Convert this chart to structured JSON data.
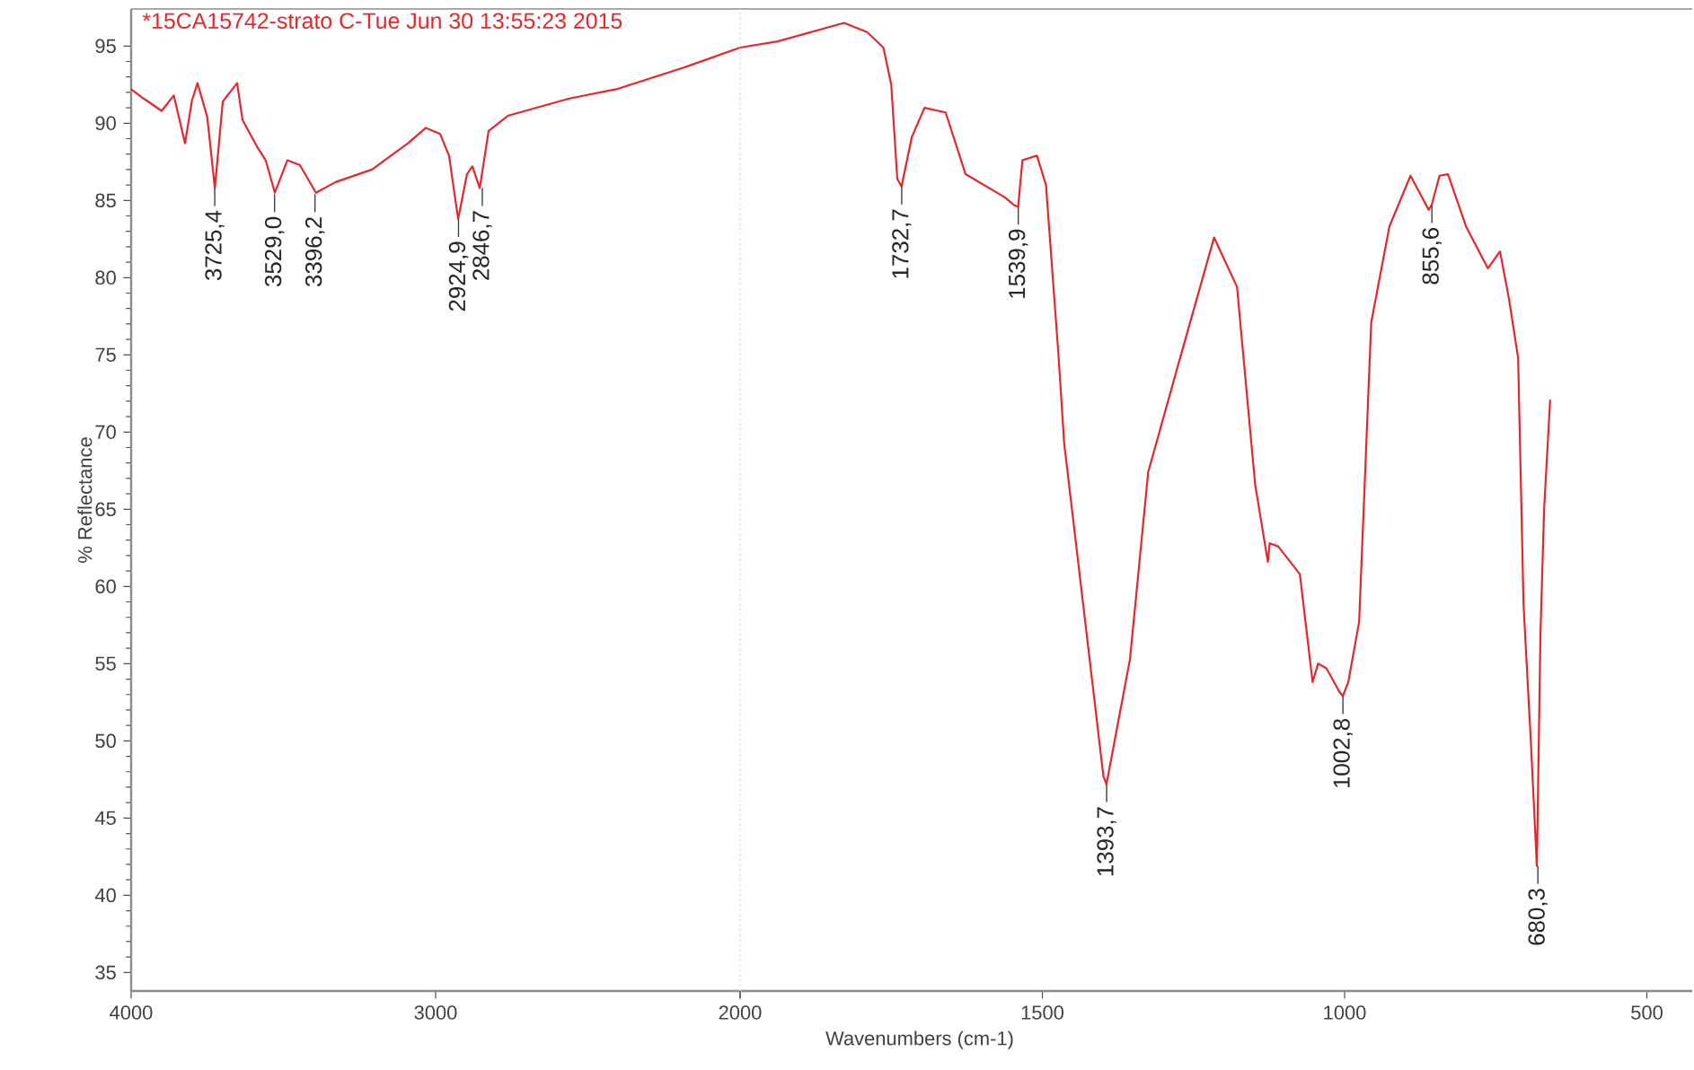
{
  "chart_data": [
    {
      "type": "line",
      "title": "*15CA15742-strato C-Tue Jun 30 13:55:23 2015",
      "ylabel": "% Reflectance",
      "xlim": [
        4000,
        2000
      ],
      "ylim": [
        33.8,
        97.4
      ],
      "xticks": [
        4000,
        3000,
        2000
      ],
      "yticks": [
        35,
        40,
        45,
        50,
        55,
        60,
        65,
        70,
        75,
        80,
        85,
        90,
        95
      ],
      "grid": false,
      "marker": "none",
      "line_style": "solid",
      "series": [
        {
          "color": "#e8262a",
          "x": [
            4000,
            3959,
            3900,
            3860,
            3823,
            3800,
            3782,
            3750,
            3725,
            3699,
            3652,
            3634,
            3587,
            3558,
            3528,
            3487,
            3446,
            3393,
            3327,
            3209,
            3091,
            3032,
            2985,
            2956,
            2926,
            2897,
            2879,
            2855,
            2826,
            2761,
            2561,
            2407,
            2171,
            2000
          ],
          "values": [
            92.2,
            91.6,
            90.8,
            91.8,
            88.7,
            91.5,
            92.6,
            90.4,
            85.8,
            91.4,
            92.6,
            90.2,
            88.5,
            87.6,
            85.5,
            87.6,
            87.3,
            85.5,
            86.2,
            87.0,
            88.7,
            89.7,
            89.3,
            87.9,
            83.8,
            86.7,
            87.2,
            85.8,
            89.5,
            90.5,
            91.6,
            92.2,
            93.7,
            94.9
          ]
        }
      ],
      "annotations": [
        {
          "text": "3725,4",
          "x": 3725.4,
          "y": 85.8
        },
        {
          "text": "3529,0",
          "x": 3529.0,
          "y": 85.4
        },
        {
          "text": "3396,2",
          "x": 3396.2,
          "y": 85.4
        },
        {
          "text": "2924,9",
          "x": 2924.9,
          "y": 83.8
        },
        {
          "text": "2846,7",
          "x": 2846.7,
          "y": 85.8
        }
      ]
    },
    {
      "type": "line",
      "xlabel": "Wavenumbers (cm-1)",
      "xlim": [
        2000,
        425
      ],
      "ylim": [
        33.8,
        97.4
      ],
      "xticks": [
        {
          "value": 2000,
          "label": null
        },
        1500,
        1000,
        500
      ],
      "tick_labels": "x",
      "grid": false,
      "marker": "none",
      "line_style": "solid",
      "series": [
        {
          "color": "#e8262a",
          "x": [
            2000,
            1938,
            1828,
            1790,
            1763,
            1750,
            1740,
            1733,
            1716,
            1695,
            1660,
            1627,
            1562,
            1547,
            1540,
            1533,
            1509,
            1494,
            1473,
            1464,
            1399,
            1394,
            1355,
            1325,
            1275,
            1216,
            1178,
            1148,
            1127,
            1124,
            1110,
            1074,
            1053,
            1044,
            1030,
            1009,
            1003,
            994,
            976,
            956,
            926,
            891,
            861,
            856,
            843,
            829,
            799,
            763,
            743,
            728,
            713,
            704,
            692,
            682,
            676,
            670,
            660
          ],
          "values": [
            94.9,
            95.3,
            96.5,
            95.9,
            94.9,
            92.5,
            86.4,
            85.9,
            89.1,
            91.0,
            90.7,
            86.7,
            85.2,
            84.7,
            84.6,
            87.6,
            87.9,
            86.0,
            74.8,
            69.3,
            47.7,
            47.2,
            55.3,
            67.4,
            74.4,
            82.6,
            79.4,
            66.6,
            61.6,
            62.8,
            62.6,
            60.8,
            53.8,
            55.0,
            54.7,
            53.2,
            52.9,
            53.8,
            57.7,
            77.1,
            83.3,
            86.6,
            84.4,
            84.7,
            86.6,
            86.7,
            83.3,
            80.6,
            81.7,
            78.6,
            74.8,
            58.8,
            50.0,
            41.9,
            57.0,
            65.0,
            72.1
          ]
        }
      ],
      "annotations": [
        {
          "text": "1732,7",
          "x": 1732.7,
          "y": 85.9
        },
        {
          "text": "1539,9",
          "x": 1539.9,
          "y": 84.6
        },
        {
          "text": "1393,7",
          "x": 1393.7,
          "y": 47.2
        },
        {
          "text": "1002,8",
          "x": 1002.8,
          "y": 52.9
        },
        {
          "text": "855,6",
          "x": 855.6,
          "y": 84.7
        },
        {
          "text": "680,3",
          "x": 680.3,
          "y": 41.9
        }
      ]
    }
  ]
}
